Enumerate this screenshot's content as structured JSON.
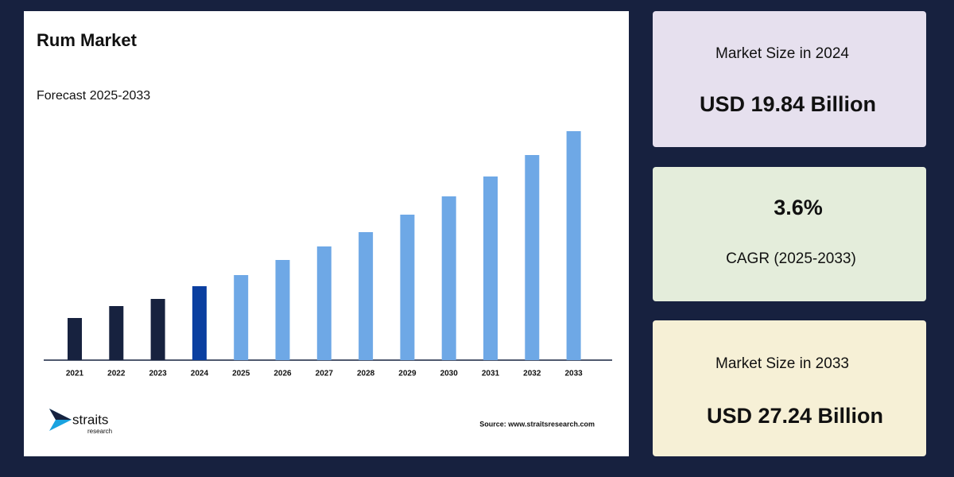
{
  "chart_data": {
    "type": "bar",
    "title": "Rum Market",
    "subtitle": "Forecast 2025-2033",
    "categories": [
      "2021",
      "2022",
      "2023",
      "2024",
      "2025",
      "2026",
      "2027",
      "2028",
      "2029",
      "2030",
      "2031",
      "2032",
      "2033"
    ],
    "values": [
      53,
      68,
      77,
      93,
      107,
      126,
      143,
      161,
      183,
      206,
      231,
      258,
      288
    ],
    "colors": [
      "#17223f",
      "#17223f",
      "#17223f",
      "#0a3fa0",
      "#6ea8e6",
      "#6ea8e6",
      "#6ea8e6",
      "#6ea8e6",
      "#6ea8e6",
      "#6ea8e6",
      "#6ea8e6",
      "#6ea8e6",
      "#6ea8e6"
    ],
    "ylim": [
      0,
      300
    ]
  },
  "logo": {
    "name": "straits",
    "tagline": "research"
  },
  "source": "Source: www.straitsresearch.com",
  "cards": [
    {
      "label": "Market Size in 2024",
      "value": "USD 19.84 Billion"
    },
    {
      "value": "3.6%",
      "label": "CAGR (2025-2033)"
    },
    {
      "label": "Market Size in 2033",
      "value": "USD 27.24 Billion"
    }
  ]
}
